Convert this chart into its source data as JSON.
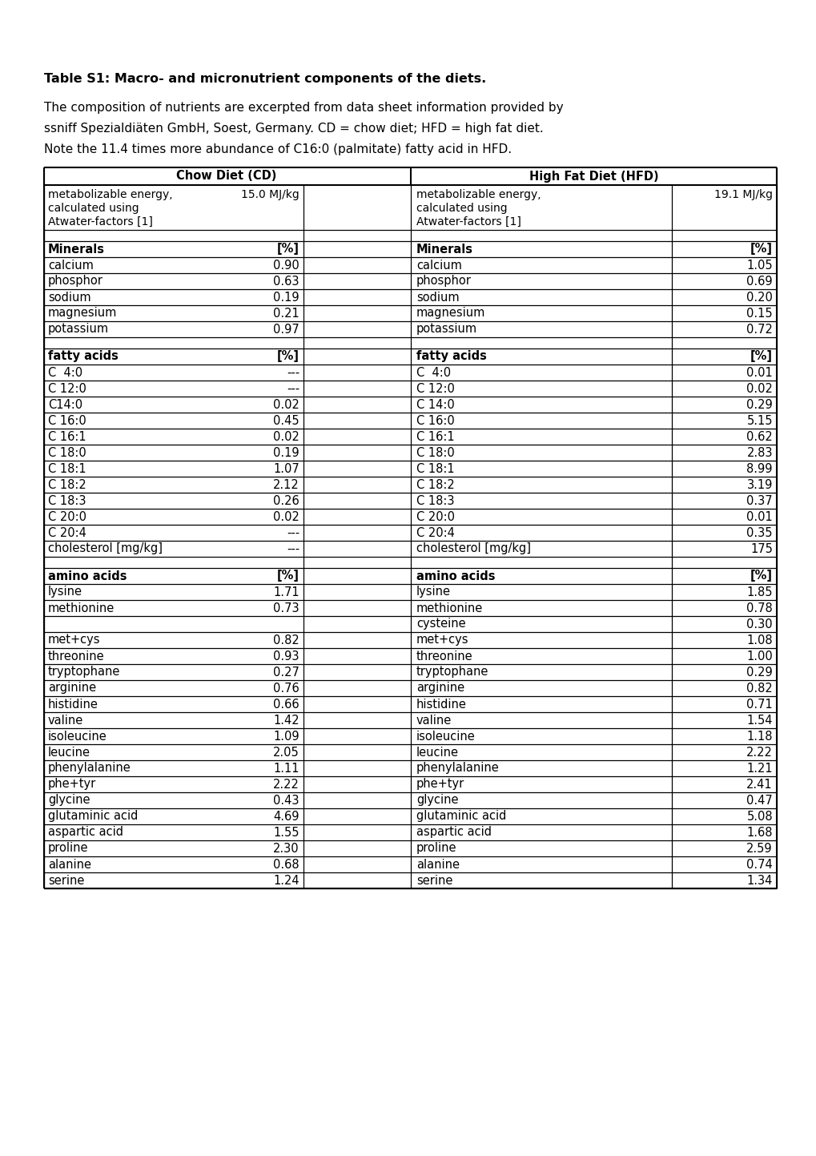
{
  "title": "Table S1: Macro- and micronutrient components of the diets.",
  "description": [
    "The composition of nutrients are excerpted from data sheet information provided by",
    "ssniff Spezialdiäten GmbH, Soest, Germany. CD = chow diet; HFD = high fat diet.",
    "Note the 11.4 times more abundance of C16:0 (palmitate) fatty acid in HFD."
  ],
  "rows": [
    {
      "cd_label": "metabolizable energy,\ncalculated using\nAtwater-factors [1]",
      "cd_val": "15.0 MJ/kg",
      "hfd_label": "metabolizable energy,\ncalculated using\nAtwater-factors [1]",
      "hfd_val": "19.1 MJ/kg",
      "type": "energy"
    },
    {
      "cd_label": "",
      "cd_val": "",
      "hfd_label": "",
      "hfd_val": "",
      "type": "spacer"
    },
    {
      "cd_label": "Minerals",
      "cd_val": "[%]",
      "hfd_label": "Minerals",
      "hfd_val": "[%]",
      "type": "header"
    },
    {
      "cd_label": "calcium",
      "cd_val": "0.90",
      "hfd_label": "calcium",
      "hfd_val": "1.05",
      "type": "data"
    },
    {
      "cd_label": "phosphor",
      "cd_val": "0.63",
      "hfd_label": "phosphor",
      "hfd_val": "0.69",
      "type": "data"
    },
    {
      "cd_label": "sodium",
      "cd_val": "0.19",
      "hfd_label": "sodium",
      "hfd_val": "0.20",
      "type": "data"
    },
    {
      "cd_label": "magnesium",
      "cd_val": "0.21",
      "hfd_label": "magnesium",
      "hfd_val": "0.15",
      "type": "data"
    },
    {
      "cd_label": "potassium",
      "cd_val": "0.97",
      "hfd_label": "potassium",
      "hfd_val": "0.72",
      "type": "data"
    },
    {
      "cd_label": "",
      "cd_val": "",
      "hfd_label": "",
      "hfd_val": "",
      "type": "spacer"
    },
    {
      "cd_label": "fatty acids",
      "cd_val": "[%]",
      "hfd_label": "fatty acids",
      "hfd_val": "[%]",
      "type": "header"
    },
    {
      "cd_label": "C  4:0",
      "cd_val": "---",
      "hfd_label": "C  4:0",
      "hfd_val": "0.01",
      "type": "data"
    },
    {
      "cd_label": "C 12:0",
      "cd_val": "---",
      "hfd_label": "C 12:0",
      "hfd_val": "0.02",
      "type": "data"
    },
    {
      "cd_label": "C14:0",
      "cd_val": "0.02",
      "hfd_label": "C 14:0",
      "hfd_val": "0.29",
      "type": "data"
    },
    {
      "cd_label": "C 16:0",
      "cd_val": "0.45",
      "hfd_label": "C 16:0",
      "hfd_val": "5.15",
      "type": "data"
    },
    {
      "cd_label": "C 16:1",
      "cd_val": "0.02",
      "hfd_label": "C 16:1",
      "hfd_val": "0.62",
      "type": "data"
    },
    {
      "cd_label": "C 18:0",
      "cd_val": "0.19",
      "hfd_label": "C 18:0",
      "hfd_val": "2.83",
      "type": "data"
    },
    {
      "cd_label": "C 18:1",
      "cd_val": "1.07",
      "hfd_label": "C 18:1",
      "hfd_val": "8.99",
      "type": "data"
    },
    {
      "cd_label": "C 18:2",
      "cd_val": "2.12",
      "hfd_label": "C 18:2",
      "hfd_val": "3.19",
      "type": "data"
    },
    {
      "cd_label": "C 18:3",
      "cd_val": "0.26",
      "hfd_label": "C 18:3",
      "hfd_val": "0.37",
      "type": "data"
    },
    {
      "cd_label": "C 20:0",
      "cd_val": "0.02",
      "hfd_label": "C 20:0",
      "hfd_val": "0.01",
      "type": "data"
    },
    {
      "cd_label": "C 20:4",
      "cd_val": "---",
      "hfd_label": "C 20:4",
      "hfd_val": "0.35",
      "type": "data"
    },
    {
      "cd_label": "cholesterol [mg/kg]",
      "cd_val": "---",
      "hfd_label": "cholesterol [mg/kg]",
      "hfd_val": "175",
      "type": "data"
    },
    {
      "cd_label": "",
      "cd_val": "",
      "hfd_label": "",
      "hfd_val": "",
      "type": "spacer"
    },
    {
      "cd_label": "amino acids",
      "cd_val": "[%]",
      "hfd_label": "amino acids",
      "hfd_val": "[%]",
      "type": "header"
    },
    {
      "cd_label": "lysine",
      "cd_val": "1.71",
      "hfd_label": "lysine",
      "hfd_val": "1.85",
      "type": "data"
    },
    {
      "cd_label": "methionine",
      "cd_val": "0.73",
      "hfd_label": "methionine",
      "hfd_val": "0.78",
      "type": "data"
    },
    {
      "cd_label": "",
      "cd_val": "",
      "hfd_label": "cysteine",
      "hfd_val": "0.30",
      "type": "data_hfd_only"
    },
    {
      "cd_label": "met+cys",
      "cd_val": "0.82",
      "hfd_label": "met+cys",
      "hfd_val": "1.08",
      "type": "data"
    },
    {
      "cd_label": "threonine",
      "cd_val": "0.93",
      "hfd_label": "threonine",
      "hfd_val": "1.00",
      "type": "data"
    },
    {
      "cd_label": "tryptophane",
      "cd_val": "0.27",
      "hfd_label": "tryptophane",
      "hfd_val": "0.29",
      "type": "data"
    },
    {
      "cd_label": "arginine",
      "cd_val": "0.76",
      "hfd_label": "arginine",
      "hfd_val": "0.82",
      "type": "data"
    },
    {
      "cd_label": "histidine",
      "cd_val": "0.66",
      "hfd_label": "histidine",
      "hfd_val": "0.71",
      "type": "data"
    },
    {
      "cd_label": "valine",
      "cd_val": "1.42",
      "hfd_label": "valine",
      "hfd_val": "1.54",
      "type": "data"
    },
    {
      "cd_label": "isoleucine",
      "cd_val": "1.09",
      "hfd_label": "isoleucine",
      "hfd_val": "1.18",
      "type": "data"
    },
    {
      "cd_label": "leucine",
      "cd_val": "2.05",
      "hfd_label": "leucine",
      "hfd_val": "2.22",
      "type": "data"
    },
    {
      "cd_label": "phenylalanine",
      "cd_val": "1.11",
      "hfd_label": "phenylalanine",
      "hfd_val": "1.21",
      "type": "data"
    },
    {
      "cd_label": "phe+tyr",
      "cd_val": "2.22",
      "hfd_label": "phe+tyr",
      "hfd_val": "2.41",
      "type": "data"
    },
    {
      "cd_label": "glycine",
      "cd_val": "0.43",
      "hfd_label": "glycine",
      "hfd_val": "0.47",
      "type": "data"
    },
    {
      "cd_label": "glutaminic acid",
      "cd_val": "4.69",
      "hfd_label": "glutaminic acid",
      "hfd_val": "5.08",
      "type": "data"
    },
    {
      "cd_label": "aspartic acid",
      "cd_val": "1.55",
      "hfd_label": "aspartic acid",
      "hfd_val": "1.68",
      "type": "data"
    },
    {
      "cd_label": "proline",
      "cd_val": "2.30",
      "hfd_label": "proline",
      "hfd_val": "2.59",
      "type": "data"
    },
    {
      "cd_label": "alanine",
      "cd_val": "0.68",
      "hfd_label": "alanine",
      "hfd_val": "0.74",
      "type": "data"
    },
    {
      "cd_label": "serine",
      "cd_val": "1.24",
      "hfd_label": "serine",
      "hfd_val": "1.34",
      "type": "data"
    }
  ],
  "bg_color": "#ffffff",
  "title_fontsize": 11.5,
  "desc_fontsize": 11.0,
  "table_fontsize": 10.5
}
